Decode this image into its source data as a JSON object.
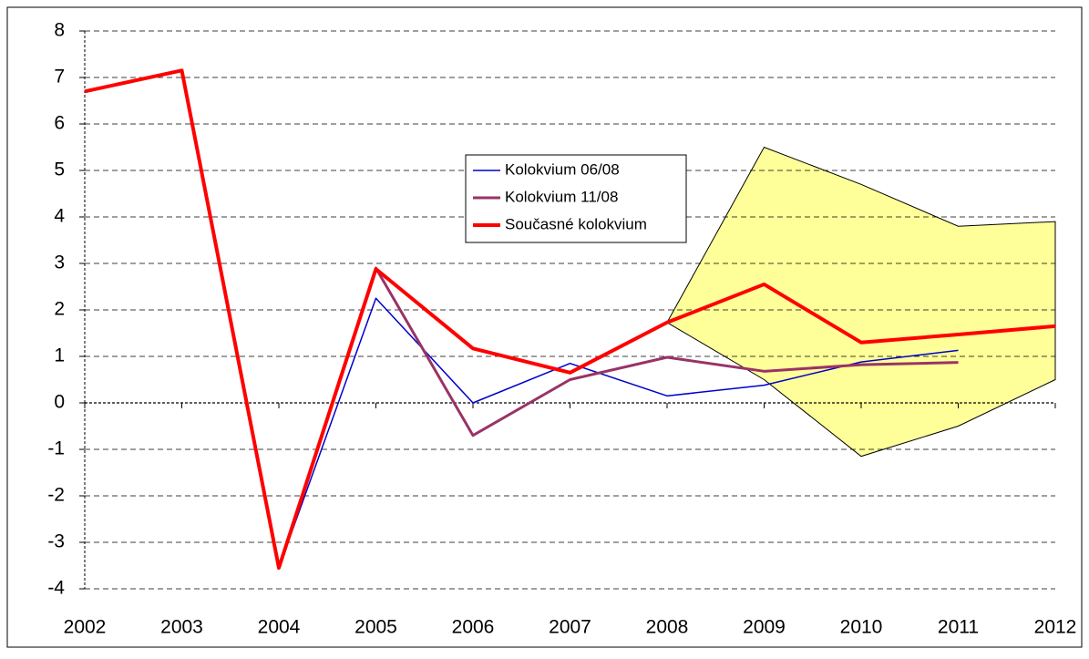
{
  "chart_data": {
    "type": "line",
    "x": [
      2002,
      2003,
      2004,
      2005,
      2006,
      2007,
      2008,
      2009,
      2010,
      2011,
      2012
    ],
    "xlim": [
      2002,
      2012
    ],
    "xticks": [
      2002,
      2003,
      2004,
      2005,
      2006,
      2007,
      2008,
      2009,
      2010,
      2011,
      2012
    ],
    "ylim": [
      -4,
      8
    ],
    "yticks": [
      -4,
      -3,
      -2,
      -1,
      0,
      1,
      2,
      3,
      4,
      5,
      6,
      7,
      8
    ],
    "grid": true,
    "legend": "center",
    "interval": {
      "color": "#ffff99",
      "upper": [
        null,
        null,
        null,
        null,
        null,
        null,
        1.73,
        5.5,
        4.7,
        3.8,
        3.9
      ],
      "lower": [
        null,
        null,
        null,
        null,
        null,
        null,
        1.73,
        0.5,
        -1.15,
        -0.5,
        0.5
      ]
    },
    "series": [
      {
        "name": "Kolokvium 06/08",
        "color": "#0000cc",
        "width": 1.5,
        "values": [
          6.7,
          7.15,
          -3.55,
          2.25,
          0.0,
          0.85,
          0.15,
          0.38,
          0.88,
          1.13,
          null
        ]
      },
      {
        "name": "Kolokvium 11/08",
        "color": "#993366",
        "width": 3,
        "values": [
          6.7,
          7.15,
          -3.55,
          2.9,
          -0.7,
          0.5,
          0.98,
          0.68,
          0.82,
          0.87,
          null
        ]
      },
      {
        "name": "Současné kolokvium",
        "color": "#ff0000",
        "width": 4,
        "values": [
          6.7,
          7.15,
          -3.55,
          2.88,
          1.17,
          0.65,
          1.73,
          2.55,
          1.3,
          1.47,
          1.65
        ]
      }
    ]
  }
}
